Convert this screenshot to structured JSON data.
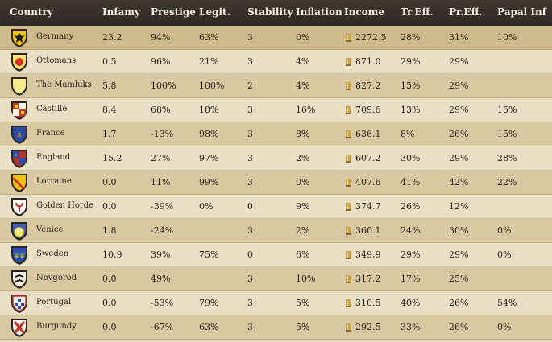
{
  "headers": {
    "country": "Country",
    "infamy": "Infamy",
    "prestige": "Prestige",
    "legit": "Legit.",
    "stability": "Stability",
    "inflation": "Inflation",
    "income": "Income",
    "treff": "Tr.Eff.",
    "preff": "Pr.Eff.",
    "papal": "Papal Inf"
  },
  "rows": [
    {
      "country": "Germany",
      "infamy": "23.2",
      "prestige": "94%",
      "legit": "63%",
      "stability": "3",
      "inflation": "0%",
      "income": "2272.5",
      "treff": "28%",
      "preff": "31%",
      "papal": "10%",
      "shield_color": "#f1c40f",
      "shield_icon": "eagle-black"
    },
    {
      "country": "Ottomans",
      "infamy": "0.5",
      "prestige": "96%",
      "legit": "21%",
      "stability": "3",
      "inflation": "4%",
      "income": "871.0",
      "treff": "29%",
      "preff": "29%",
      "papal": "",
      "shield_color": "#f4e36c",
      "shield_icon": "red-disc"
    },
    {
      "country": "The Mamluks",
      "infamy": "5.8",
      "prestige": "100%",
      "legit": "100%",
      "stability": "2",
      "inflation": "4%",
      "income": "827.2",
      "treff": "15%",
      "preff": "29%",
      "papal": "",
      "shield_color": "#f6ea8a",
      "shield_icon": "plain"
    },
    {
      "country": "Castille",
      "infamy": "8.4",
      "prestige": "68%",
      "legit": "18%",
      "stability": "3",
      "inflation": "16%",
      "income": "709.6",
      "treff": "13%",
      "preff": "29%",
      "papal": "15%",
      "shield_color": "#c0392b",
      "shield_icon": "castle-lion"
    },
    {
      "country": "France",
      "infamy": "1.7",
      "prestige": "-13%",
      "legit": "98%",
      "stability": "3",
      "inflation": "8%",
      "income": "636.1",
      "treff": "8%",
      "preff": "26%",
      "papal": "15%",
      "shield_color": "#2c4aa8",
      "shield_icon": "fleur-de-lis"
    },
    {
      "country": "England",
      "infamy": "15.2",
      "prestige": "27%",
      "legit": "97%",
      "stability": "3",
      "inflation": "2%",
      "income": "607.2",
      "treff": "30%",
      "preff": "29%",
      "papal": "28%",
      "shield_color": "#b8322a",
      "shield_icon": "quartered"
    },
    {
      "country": "Lorraine",
      "infamy": "0.0",
      "prestige": "11%",
      "legit": "99%",
      "stability": "3",
      "inflation": "0%",
      "income": "407.6",
      "treff": "41%",
      "preff": "42%",
      "papal": "22%",
      "shield_color": "#f1c40f",
      "shield_icon": "red-bend"
    },
    {
      "country": "Golden Horde",
      "infamy": "0.0",
      "prestige": "-39%",
      "legit": "0%",
      "stability": "0",
      "inflation": "9%",
      "income": "374.7",
      "treff": "26%",
      "preff": "12%",
      "papal": "",
      "shield_color": "#ffffff",
      "shield_icon": "red-tamga"
    },
    {
      "country": "Venice",
      "infamy": "1.8",
      "prestige": "-24%",
      "legit": "",
      "stability": "3",
      "inflation": "2%",
      "income": "360.1",
      "treff": "24%",
      "preff": "30%",
      "papal": "0%",
      "shield_color": "#3d5db8",
      "shield_icon": "winged-lion"
    },
    {
      "country": "Sweden",
      "infamy": "10.9",
      "prestige": "39%",
      "legit": "75%",
      "stability": "0",
      "inflation": "6%",
      "income": "349.9",
      "treff": "29%",
      "preff": "29%",
      "papal": "0%",
      "shield_color": "#2a54b0",
      "shield_icon": "three-crowns"
    },
    {
      "country": "Novgorod",
      "infamy": "0.0",
      "prestige": "49%",
      "legit": "",
      "stability": "3",
      "inflation": "10%",
      "income": "317.2",
      "treff": "17%",
      "preff": "25%",
      "papal": "",
      "shield_color": "#f5f0e6",
      "shield_icon": "black-birds"
    },
    {
      "country": "Portugal",
      "infamy": "0.0",
      "prestige": "-53%",
      "legit": "79%",
      "stability": "3",
      "inflation": "5%",
      "income": "310.5",
      "treff": "40%",
      "preff": "26%",
      "papal": "54%",
      "shield_color": "#f5f0e6",
      "shield_icon": "quinas"
    },
    {
      "country": "Burgundy",
      "infamy": "0.0",
      "prestige": "-67%",
      "legit": "63%",
      "stability": "3",
      "inflation": "5%",
      "income": "292.5",
      "treff": "33%",
      "preff": "26%",
      "papal": "0%",
      "shield_color": "#f5f0e6",
      "shield_icon": "saltire"
    }
  ]
}
